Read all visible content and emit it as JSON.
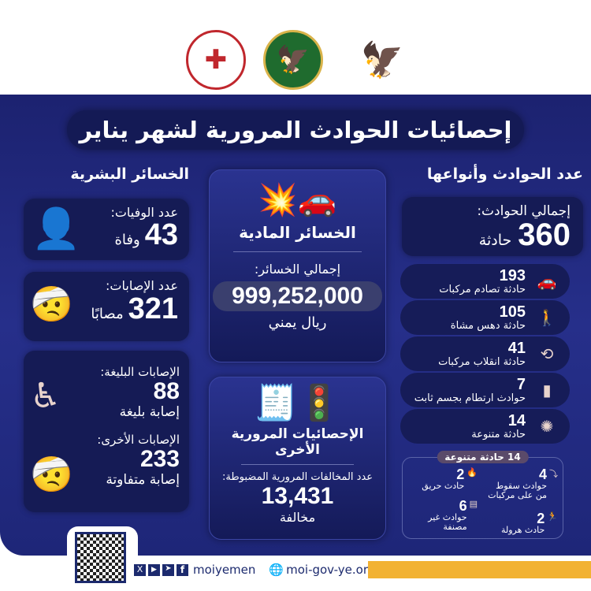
{
  "logos": [
    "police-academy-emblem",
    "traffic-police-emblem",
    "yemen-eagle-emblem"
  ],
  "title": "إحصائيات الحوادث المرورية لشهر يناير",
  "accidents": {
    "heading": "عدد الحوادث وأنواعها",
    "total_label": "إجمالي الحوادث:",
    "total_value": "360",
    "total_unit": "حادثة",
    "items": [
      {
        "value": "193",
        "label": "حادثة تصادم مركبات",
        "icon": "car-collision-icon"
      },
      {
        "value": "105",
        "label": "حادثة دهس مشاة",
        "icon": "pedestrian-icon"
      },
      {
        "value": "41",
        "label": "حادثة انقلاب مركبات",
        "icon": "car-rollover-icon"
      },
      {
        "value": "7",
        "label": "حوادث ارتطام بجسم ثابت",
        "icon": "car-wall-crash-icon"
      },
      {
        "value": "14",
        "label": "حادثة متنوعة",
        "icon": "various-icon"
      }
    ],
    "various": {
      "badge": "14 حادثة متنوعة",
      "items": [
        {
          "value": "4",
          "label": "حوادث سقوط من على مركبات",
          "icon": "fall-icon"
        },
        {
          "value": "2",
          "label": "حادث حريق",
          "icon": "fire-icon"
        },
        {
          "value": "2",
          "label": "حادث هرولة",
          "icon": "runner-icon"
        },
        {
          "value": "6",
          "label": "حوادث غير مصنفة",
          "icon": "unclassified-icon"
        }
      ]
    }
  },
  "material": {
    "title": "الخسائر المادية",
    "label": "إجمالي الخسائر:",
    "value": "999,252,000",
    "unit": "ريال يمني"
  },
  "other": {
    "title": "الإحصائيات المرورية الأخرى",
    "label": "عدد المخالفات المرورية المضبوطة:",
    "value": "13,431",
    "unit": "مخالفة"
  },
  "human": {
    "heading": "الخسائر البشرية",
    "deaths_label": "عدد الوفيات:",
    "deaths_value": "43",
    "deaths_unit": "وفاة",
    "injuries_label": "عدد الإصابات:",
    "injuries_value": "321",
    "injuries_unit": "مصابًا",
    "severe_label": "الإصابات البليغة:",
    "severe_value": "88",
    "severe_unit": "إصابة بليغة",
    "other_label": "الإصابات الأخرى:",
    "other_value": "233",
    "other_unit": "إصابة متفاوتة"
  },
  "footer": {
    "handle": "moiyemen",
    "website": "moi-gov-ye.org",
    "socials": [
      "x-icon",
      "youtube-icon",
      "telegram-icon",
      "facebook-icon"
    ]
  },
  "colors": {
    "navy": "#1c2270",
    "accent": "#f2b233"
  }
}
